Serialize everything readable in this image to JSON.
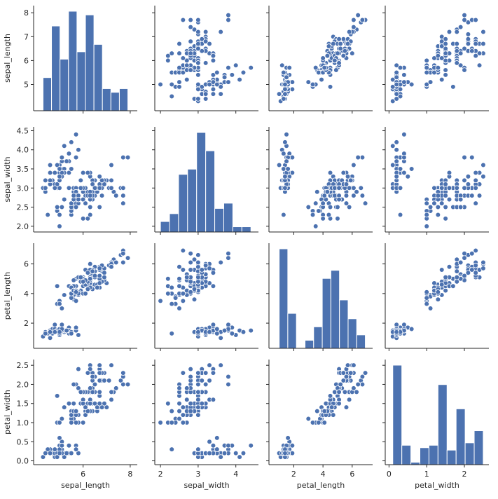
{
  "chart_data": {
    "type": "scatter",
    "kind": "pairplot",
    "color": "#4c72b0",
    "grid": false,
    "variables": [
      "sepal_length",
      "sepal_width",
      "petal_length",
      "petal_width"
    ],
    "axis_limits": {
      "sepal_length": [
        3.9,
        8.3
      ],
      "sepal_width": [
        1.85,
        4.6
      ],
      "petal_length": [
        0.3,
        7.4
      ],
      "petal_width": [
        -0.1,
        2.65
      ]
    },
    "ticks": {
      "sepal_length": [
        5,
        6,
        7,
        8
      ],
      "sepal_width": [
        2.0,
        2.5,
        3.0,
        3.5,
        4.0,
        4.5
      ],
      "petal_length": [
        2,
        4,
        6
      ],
      "petal_width": [
        0.0,
        0.5,
        1.0,
        1.5,
        2.0,
        2.5
      ]
    },
    "tick_labels": {
      "sepal_length": [
        "5",
        "6",
        "7",
        "8"
      ],
      "sepal_width": [
        "2.0",
        "2.5",
        "3.0",
        "3.5",
        "4.0",
        "4.5"
      ],
      "petal_length": [
        "2",
        "4",
        "6"
      ],
      "petal_width": [
        "0.0",
        "0.5",
        "1.0",
        "1.5",
        "2.0",
        "2.5"
      ]
    },
    "x_tick_labels": {
      "sepal_length": [
        "6",
        "8"
      ],
      "sepal_width": [
        "2",
        "3",
        "4"
      ],
      "petal_length": [
        "2",
        "4",
        "6"
      ],
      "petal_width": [
        "0",
        "1",
        "2"
      ]
    },
    "x_ticks": {
      "sepal_length": [
        6,
        8
      ],
      "sepal_width": [
        2,
        3,
        4
      ],
      "petal_length": [
        2,
        4,
        6
      ],
      "petal_width": [
        0,
        1,
        2
      ]
    },
    "histograms": {
      "sepal_length": {
        "bin_edges": [
          4.3,
          4.66,
          5.02,
          5.38,
          5.74,
          6.1,
          6.46,
          6.82,
          7.18,
          7.54,
          7.9
        ],
        "counts": [
          9,
          23,
          14,
          27,
          16,
          26,
          18,
          6,
          5,
          6
        ]
      },
      "sepal_width": {
        "bin_edges": [
          2.0,
          2.24,
          2.48,
          2.72,
          2.96,
          3.2,
          3.44,
          3.68,
          3.92,
          4.16,
          4.4
        ],
        "counts": [
          4,
          7,
          22,
          24,
          38,
          31,
          9,
          11,
          2,
          2
        ]
      },
      "petal_length": {
        "bin_edges": [
          1.0,
          1.59,
          2.18,
          2.77,
          3.36,
          3.95,
          4.54,
          5.13,
          5.72,
          6.31,
          6.9
        ],
        "counts": [
          37,
          13,
          0,
          3,
          8,
          26,
          29,
          18,
          11,
          5
        ]
      },
      "petal_width": {
        "bin_edges": [
          0.1,
          0.34,
          0.58,
          0.82,
          1.06,
          1.3,
          1.54,
          1.78,
          2.02,
          2.26,
          2.5
        ],
        "counts": [
          41,
          8,
          1,
          7,
          8,
          33,
          6,
          23,
          9,
          14
        ]
      }
    },
    "samples": {
      "columns": [
        "sepal_length",
        "sepal_width",
        "petal_length",
        "petal_width"
      ],
      "rows": [
        [
          5.1,
          3.5,
          1.4,
          0.2
        ],
        [
          4.9,
          3.0,
          1.4,
          0.2
        ],
        [
          4.7,
          3.2,
          1.3,
          0.2
        ],
        [
          4.6,
          3.1,
          1.5,
          0.2
        ],
        [
          5.0,
          3.6,
          1.4,
          0.2
        ],
        [
          5.4,
          3.9,
          1.7,
          0.4
        ],
        [
          4.6,
          3.4,
          1.4,
          0.3
        ],
        [
          5.0,
          3.4,
          1.5,
          0.2
        ],
        [
          4.4,
          2.9,
          1.4,
          0.2
        ],
        [
          4.9,
          3.1,
          1.5,
          0.1
        ],
        [
          5.4,
          3.7,
          1.5,
          0.2
        ],
        [
          4.8,
          3.4,
          1.6,
          0.2
        ],
        [
          4.8,
          3.0,
          1.4,
          0.1
        ],
        [
          4.3,
          3.0,
          1.1,
          0.1
        ],
        [
          5.8,
          4.0,
          1.2,
          0.2
        ],
        [
          5.7,
          4.4,
          1.5,
          0.4
        ],
        [
          5.4,
          3.9,
          1.3,
          0.4
        ],
        [
          5.1,
          3.5,
          1.4,
          0.3
        ],
        [
          5.7,
          3.8,
          1.7,
          0.3
        ],
        [
          5.1,
          3.8,
          1.5,
          0.3
        ],
        [
          5.4,
          3.4,
          1.7,
          0.2
        ],
        [
          5.1,
          3.7,
          1.5,
          0.4
        ],
        [
          4.6,
          3.6,
          1.0,
          0.2
        ],
        [
          5.1,
          3.3,
          1.7,
          0.5
        ],
        [
          4.8,
          3.4,
          1.9,
          0.2
        ],
        [
          5.0,
          3.0,
          1.6,
          0.2
        ],
        [
          5.0,
          3.4,
          1.6,
          0.4
        ],
        [
          5.2,
          3.5,
          1.5,
          0.2
        ],
        [
          5.2,
          3.4,
          1.4,
          0.2
        ],
        [
          4.7,
          3.2,
          1.6,
          0.2
        ],
        [
          4.8,
          3.1,
          1.6,
          0.2
        ],
        [
          5.4,
          3.4,
          1.5,
          0.4
        ],
        [
          5.2,
          4.1,
          1.5,
          0.1
        ],
        [
          5.5,
          4.2,
          1.4,
          0.2
        ],
        [
          4.9,
          3.1,
          1.5,
          0.2
        ],
        [
          5.0,
          3.2,
          1.2,
          0.2
        ],
        [
          5.5,
          3.5,
          1.3,
          0.2
        ],
        [
          4.9,
          3.6,
          1.4,
          0.1
        ],
        [
          4.4,
          3.0,
          1.3,
          0.2
        ],
        [
          5.1,
          3.4,
          1.5,
          0.2
        ],
        [
          5.0,
          3.5,
          1.3,
          0.3
        ],
        [
          4.5,
          2.3,
          1.3,
          0.3
        ],
        [
          4.4,
          3.2,
          1.3,
          0.2
        ],
        [
          5.0,
          3.5,
          1.6,
          0.6
        ],
        [
          5.1,
          3.8,
          1.9,
          0.4
        ],
        [
          4.8,
          3.0,
          1.4,
          0.3
        ],
        [
          5.1,
          3.8,
          1.6,
          0.2
        ],
        [
          4.6,
          3.2,
          1.4,
          0.2
        ],
        [
          5.3,
          3.7,
          1.5,
          0.2
        ],
        [
          5.0,
          3.3,
          1.4,
          0.2
        ],
        [
          7.0,
          3.2,
          4.7,
          1.4
        ],
        [
          6.4,
          3.2,
          4.5,
          1.5
        ],
        [
          6.9,
          3.1,
          4.9,
          1.5
        ],
        [
          5.5,
          2.3,
          4.0,
          1.3
        ],
        [
          6.5,
          2.8,
          4.6,
          1.5
        ],
        [
          5.7,
          2.8,
          4.5,
          1.3
        ],
        [
          6.3,
          3.3,
          4.7,
          1.6
        ],
        [
          4.9,
          2.4,
          3.3,
          1.0
        ],
        [
          6.6,
          2.9,
          4.6,
          1.3
        ],
        [
          5.2,
          2.7,
          3.9,
          1.4
        ],
        [
          5.0,
          2.0,
          3.5,
          1.0
        ],
        [
          5.9,
          3.0,
          4.2,
          1.5
        ],
        [
          6.0,
          2.2,
          4.0,
          1.0
        ],
        [
          6.1,
          2.9,
          4.7,
          1.4
        ],
        [
          5.6,
          2.9,
          3.6,
          1.3
        ],
        [
          6.7,
          3.1,
          4.4,
          1.4
        ],
        [
          5.6,
          3.0,
          4.5,
          1.5
        ],
        [
          5.8,
          2.7,
          4.1,
          1.0
        ],
        [
          6.2,
          2.2,
          4.5,
          1.5
        ],
        [
          5.6,
          2.5,
          3.9,
          1.1
        ],
        [
          5.9,
          3.2,
          4.8,
          1.8
        ],
        [
          6.1,
          2.8,
          4.0,
          1.3
        ],
        [
          6.3,
          2.5,
          4.9,
          1.5
        ],
        [
          6.1,
          2.8,
          4.7,
          1.2
        ],
        [
          6.4,
          2.9,
          4.3,
          1.3
        ],
        [
          6.6,
          3.0,
          4.4,
          1.4
        ],
        [
          6.8,
          2.8,
          4.8,
          1.4
        ],
        [
          6.7,
          3.0,
          5.0,
          1.7
        ],
        [
          6.0,
          2.9,
          4.5,
          1.5
        ],
        [
          5.7,
          2.6,
          3.5,
          1.0
        ],
        [
          5.5,
          2.4,
          3.8,
          1.1
        ],
        [
          5.5,
          2.4,
          3.7,
          1.0
        ],
        [
          5.8,
          2.7,
          3.9,
          1.2
        ],
        [
          6.0,
          2.7,
          5.1,
          1.6
        ],
        [
          5.4,
          3.0,
          4.5,
          1.5
        ],
        [
          6.0,
          3.4,
          4.5,
          1.6
        ],
        [
          6.7,
          3.1,
          4.7,
          1.5
        ],
        [
          6.3,
          2.3,
          4.4,
          1.3
        ],
        [
          5.6,
          3.0,
          4.1,
          1.3
        ],
        [
          5.5,
          2.5,
          4.0,
          1.3
        ],
        [
          5.5,
          2.6,
          4.4,
          1.2
        ],
        [
          6.1,
          3.0,
          4.6,
          1.4
        ],
        [
          5.8,
          2.6,
          4.0,
          1.2
        ],
        [
          5.0,
          2.3,
          3.3,
          1.0
        ],
        [
          5.6,
          2.7,
          4.2,
          1.3
        ],
        [
          5.7,
          3.0,
          4.2,
          1.2
        ],
        [
          5.7,
          2.9,
          4.2,
          1.3
        ],
        [
          6.2,
          2.9,
          4.3,
          1.3
        ],
        [
          5.1,
          2.5,
          3.0,
          1.1
        ],
        [
          5.7,
          2.8,
          4.1,
          1.3
        ],
        [
          6.3,
          3.3,
          6.0,
          2.5
        ],
        [
          5.8,
          2.7,
          5.1,
          1.9
        ],
        [
          7.1,
          3.0,
          5.9,
          2.1
        ],
        [
          6.3,
          2.9,
          5.6,
          1.8
        ],
        [
          6.5,
          3.0,
          5.8,
          2.2
        ],
        [
          7.6,
          3.0,
          6.6,
          2.1
        ],
        [
          4.9,
          2.5,
          4.5,
          1.7
        ],
        [
          7.3,
          2.9,
          6.3,
          1.8
        ],
        [
          6.7,
          2.5,
          5.8,
          1.8
        ],
        [
          7.2,
          3.6,
          6.1,
          2.5
        ],
        [
          6.5,
          3.2,
          5.1,
          2.0
        ],
        [
          6.4,
          2.7,
          5.3,
          1.9
        ],
        [
          6.8,
          3.0,
          5.5,
          2.1
        ],
        [
          5.7,
          2.5,
          5.0,
          2.0
        ],
        [
          5.8,
          2.8,
          5.1,
          2.4
        ],
        [
          6.4,
          3.2,
          5.3,
          2.3
        ],
        [
          6.5,
          3.0,
          5.5,
          1.8
        ],
        [
          7.7,
          3.8,
          6.7,
          2.2
        ],
        [
          7.7,
          2.6,
          6.9,
          2.3
        ],
        [
          6.0,
          2.2,
          5.0,
          1.5
        ],
        [
          6.9,
          3.2,
          5.7,
          2.3
        ],
        [
          5.6,
          2.8,
          4.9,
          2.0
        ],
        [
          7.7,
          2.8,
          6.7,
          2.0
        ],
        [
          6.3,
          2.7,
          4.9,
          1.8
        ],
        [
          6.7,
          3.3,
          5.7,
          2.1
        ],
        [
          7.2,
          3.2,
          6.0,
          1.8
        ],
        [
          6.2,
          2.8,
          4.8,
          1.8
        ],
        [
          6.1,
          3.0,
          4.9,
          1.8
        ],
        [
          6.4,
          2.8,
          5.6,
          2.1
        ],
        [
          7.2,
          3.0,
          5.8,
          1.6
        ],
        [
          7.4,
          2.8,
          6.1,
          1.9
        ],
        [
          7.9,
          3.8,
          6.4,
          2.0
        ],
        [
          6.4,
          2.8,
          5.6,
          2.2
        ],
        [
          6.3,
          2.8,
          5.1,
          1.5
        ],
        [
          6.1,
          2.6,
          5.6,
          1.4
        ],
        [
          7.7,
          3.0,
          6.1,
          2.3
        ],
        [
          6.3,
          3.4,
          5.6,
          2.4
        ],
        [
          6.4,
          3.1,
          5.5,
          1.8
        ],
        [
          6.0,
          3.0,
          4.8,
          1.8
        ],
        [
          6.9,
          3.1,
          5.4,
          2.1
        ],
        [
          6.7,
          3.1,
          5.6,
          2.4
        ],
        [
          6.9,
          3.1,
          5.1,
          2.3
        ],
        [
          5.8,
          2.7,
          5.1,
          1.9
        ],
        [
          6.8,
          3.2,
          5.9,
          2.3
        ],
        [
          6.7,
          3.3,
          5.7,
          2.5
        ],
        [
          6.7,
          3.0,
          5.2,
          2.3
        ],
        [
          6.3,
          2.5,
          5.0,
          1.9
        ],
        [
          6.5,
          3.0,
          5.2,
          2.0
        ],
        [
          6.2,
          3.4,
          5.4,
          2.3
        ],
        [
          5.9,
          3.0,
          5.1,
          1.8
        ]
      ]
    }
  }
}
